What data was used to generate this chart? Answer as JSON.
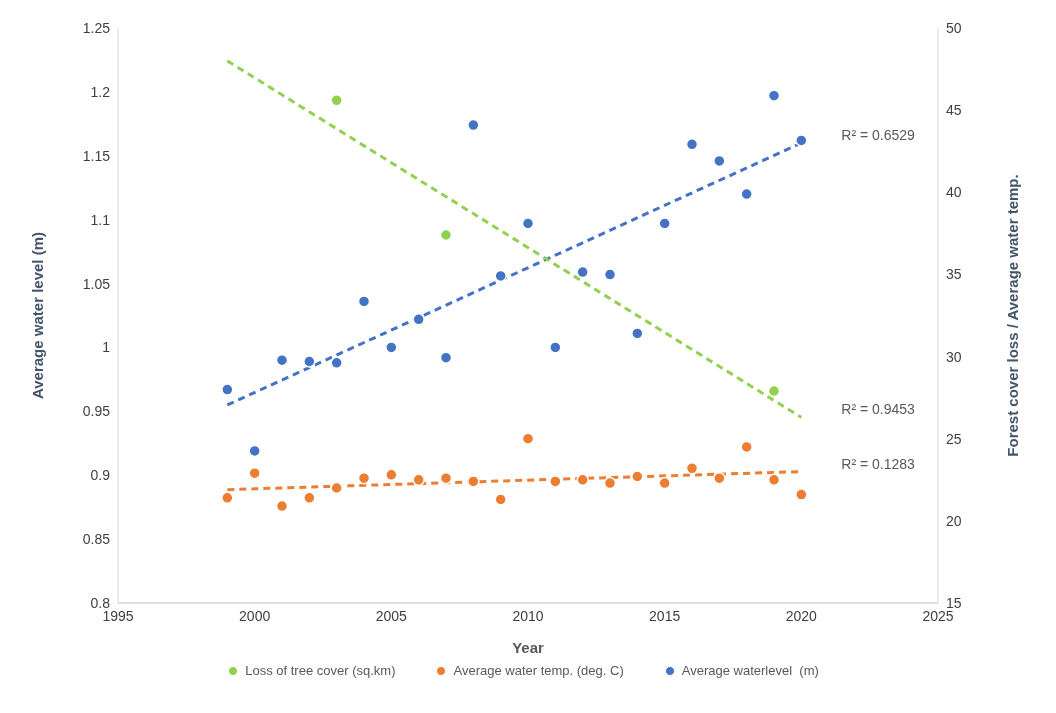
{
  "chart_data": {
    "type": "scatter",
    "xlabel": "Year",
    "ylabel": "Average water level (m)",
    "y2label": "Forest cover loss  / Average water temp.",
    "x": [
      1999,
      2000,
      2001,
      2002,
      2003,
      2004,
      2005,
      2006,
      2007,
      2008,
      2009,
      2010,
      2011,
      2012,
      2013,
      2014,
      2015,
      2016,
      2017,
      2018,
      2019,
      2020
    ],
    "series": [
      {
        "name": "Loss of tree cover (sq.km)",
        "color": "#92d050",
        "axis": "y2",
        "x": [
          2003,
          2007,
          2019
        ],
        "values": [
          45.6,
          37.4,
          27.9
        ]
      },
      {
        "name": "Average water temp. (deg. C)",
        "color": "#ed7d31",
        "axis": "y2",
        "values": [
          21.4,
          22.9,
          20.9,
          21.4,
          22.0,
          22.6,
          22.8,
          22.5,
          22.6,
          22.4,
          21.3,
          25.0,
          22.4,
          22.5,
          22.3,
          22.7,
          22.3,
          23.2,
          22.6,
          24.5,
          22.5,
          21.6
        ]
      },
      {
        "name": "Average waterlevel  (m)",
        "color": "#4472c4",
        "values": [
          0.967,
          0.919,
          0.99,
          0.989,
          0.988,
          1.036,
          1.0,
          1.022,
          0.992,
          1.174,
          1.056,
          1.097,
          1.0,
          1.059,
          1.057,
          1.011,
          1.097,
          1.159,
          1.146,
          1.12,
          1.197,
          1.162
        ]
      },
      {
        "type": "line",
        "marker": "none",
        "color": "#4472c4",
        "line_style": "dashed",
        "x": [
          1999,
          2020
        ],
        "values": [
          0.955,
          1.16
        ]
      },
      {
        "type": "line",
        "marker": "none",
        "color": "#92d050",
        "line_style": "dashed",
        "axis": "y2",
        "x": [
          1999,
          2020
        ],
        "values": [
          48.0,
          26.3
        ]
      },
      {
        "type": "line",
        "marker": "none",
        "color": "#ed7d31",
        "line_style": "dashed",
        "axis": "y2",
        "x": [
          1999,
          2020
        ],
        "values": [
          21.9,
          23.0
        ]
      }
    ],
    "annotations": [
      "R² = 0.6529",
      "R² = 0.9453",
      "R² = 0.1283"
    ],
    "xlim": [
      1995,
      2025
    ],
    "xticks": [
      1995,
      2000,
      2005,
      2010,
      2015,
      2020,
      2025
    ],
    "ylim": [
      0.8,
      1.25
    ],
    "yticks": [
      0.8,
      0.85,
      0.9,
      0.95,
      1,
      1.05,
      1.1,
      1.15,
      1.2,
      1.25
    ],
    "y2lim": [
      15,
      50
    ],
    "y2ticks": [
      15,
      20,
      25,
      30,
      35,
      40,
      45,
      50
    ],
    "marker": "circle",
    "legend": "bottom"
  }
}
